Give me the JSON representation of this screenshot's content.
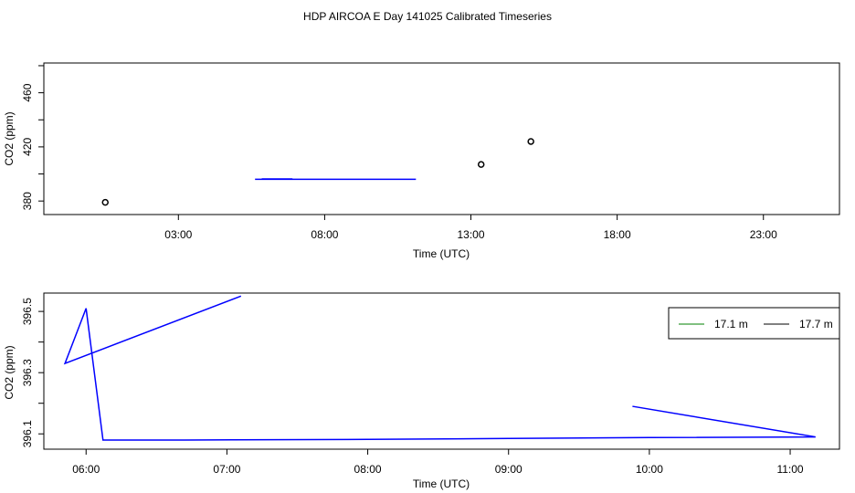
{
  "title": "HDP AIRCOA E  Day 141025  Calibrated Timeseries",
  "colors": {
    "series": "#0000ff",
    "legend_green": "#008000",
    "axis": "#000000"
  },
  "chart_data": [
    {
      "type": "line",
      "xlabel": "Time (UTC)",
      "ylabel": "CO2 (ppm)",
      "x_unit": "hours UTC",
      "xlim": [
        -1.6,
        25.6
      ],
      "ylim": [
        370,
        482
      ],
      "x_ticks": [
        3,
        8,
        13,
        18,
        23
      ],
      "x_tick_labels": [
        "03:00",
        "08:00",
        "13:00",
        "18:00",
        "23:00"
      ],
      "y_ticks": [
        380,
        420,
        460
      ],
      "y_tick_labels": [
        "380",
        "420",
        "460"
      ],
      "y_minor_ticks": [
        380,
        400,
        420,
        440,
        460,
        480
      ],
      "points": [
        {
          "x": 0.5,
          "y": 379
        },
        {
          "x": 13.35,
          "y": 407
        },
        {
          "x": 15.05,
          "y": 424
        }
      ],
      "lines": [
        {
          "x": [
            5.62,
            11.12
          ],
          "y": [
            396.1,
            396.1
          ]
        },
        {
          "x": [
            5.85,
            6.9
          ],
          "y": [
            396.3,
            396.3
          ]
        }
      ]
    },
    {
      "type": "line",
      "xlabel": "Time (UTC)",
      "ylabel": "CO2 (ppm)",
      "x_unit": "hours UTC",
      "xlim": [
        5.7,
        11.35
      ],
      "ylim": [
        396.05,
        396.56
      ],
      "x_ticks": [
        6,
        7,
        8,
        9,
        10,
        11
      ],
      "x_tick_labels": [
        "06:00",
        "07:00",
        "08:00",
        "09:00",
        "10:00",
        "11:00"
      ],
      "y_ticks": [
        396.1,
        396.3,
        396.5
      ],
      "y_tick_labels": [
        "396.1",
        "396.3",
        "396.5"
      ],
      "y_minor_ticks": [
        396.1,
        396.2,
        396.3,
        396.4,
        396.5
      ],
      "legend": {
        "placement": "top-right",
        "entries": [
          {
            "label": "17.1 m",
            "color": "#008000"
          },
          {
            "label": "17.7 m",
            "color": "#000000"
          }
        ]
      },
      "series": [
        {
          "color": "#0000ff",
          "x": [
            7.1,
            5.85,
            6.0,
            6.12,
            6.7,
            8.0,
            9.0,
            10.0,
            11.18,
            9.88
          ],
          "y": [
            396.55,
            396.33,
            396.51,
            396.08,
            396.08,
            396.082,
            396.085,
            396.088,
            396.09,
            396.19
          ]
        }
      ]
    }
  ]
}
